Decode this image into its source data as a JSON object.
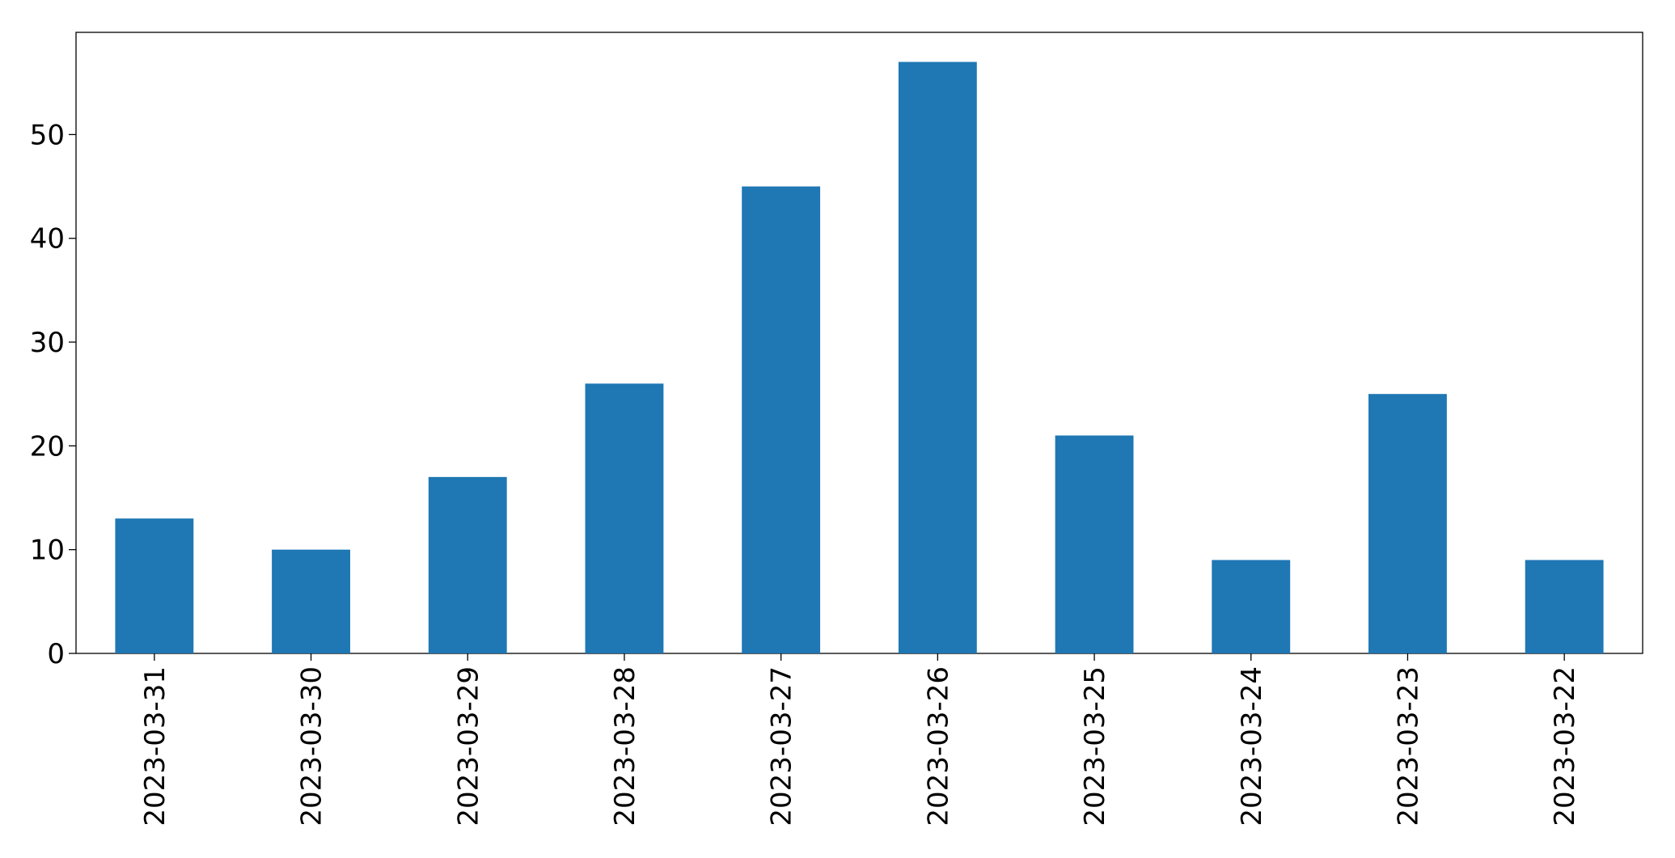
{
  "chart_data": {
    "type": "bar",
    "categories": [
      "2023-03-31",
      "2023-03-30",
      "2023-03-29",
      "2023-03-28",
      "2023-03-27",
      "2023-03-26",
      "2023-03-25",
      "2023-03-24",
      "2023-03-23",
      "2023-03-22"
    ],
    "values": [
      13,
      10,
      17,
      26,
      45,
      57,
      21,
      9,
      25,
      9
    ],
    "color": "#1f77b4",
    "ylim": [
      0,
      59.85
    ],
    "yticks": [
      0,
      10,
      20,
      30,
      40,
      50
    ],
    "grid": false
  }
}
